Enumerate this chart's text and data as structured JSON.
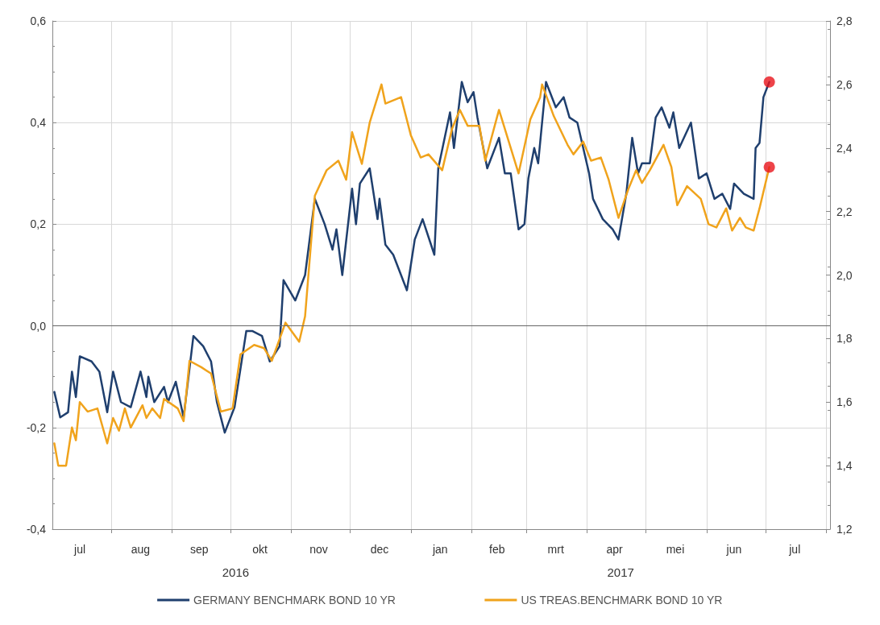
{
  "chart_data": {
    "type": "line",
    "marker": "none",
    "line_style": "solid",
    "grid": true,
    "legend": "bottom",
    "annotations": [
      "2016",
      "2017"
    ],
    "xlim": [
      "2016-07-02",
      "2017-08-03"
    ],
    "xticks": [
      {
        "value": "2016-07-16",
        "label": "jul"
      },
      {
        "value": "2016-08-01",
        "label": null
      },
      {
        "value": "2016-08-16",
        "label": "aug"
      },
      {
        "value": "2016-09-01",
        "label": null
      },
      {
        "value": "2016-09-15",
        "label": "sep"
      },
      {
        "value": "2016-10-01",
        "label": null
      },
      {
        "value": "2016-10-16",
        "label": "okt"
      },
      {
        "value": "2016-11-01",
        "label": null
      },
      {
        "value": "2016-11-15",
        "label": "nov"
      },
      {
        "value": "2016-12-01",
        "label": null
      },
      {
        "value": "2016-12-16",
        "label": "dec"
      },
      {
        "value": "2017-01-01",
        "label": null
      },
      {
        "value": "2017-01-16",
        "label": "jan"
      },
      {
        "value": "2017-02-01",
        "label": null
      },
      {
        "value": "2017-02-14",
        "label": "feb"
      },
      {
        "value": "2017-03-01",
        "label": null
      },
      {
        "value": "2017-03-16",
        "label": "mrt"
      },
      {
        "value": "2017-04-01",
        "label": null
      },
      {
        "value": "2017-04-15",
        "label": "apr"
      },
      {
        "value": "2017-05-01",
        "label": null
      },
      {
        "value": "2017-05-16",
        "label": "mei"
      },
      {
        "value": "2017-06-01",
        "label": null
      },
      {
        "value": "2017-06-15",
        "label": "jun"
      },
      {
        "value": "2017-07-01",
        "label": null
      },
      {
        "value": "2017-07-16",
        "label": "jul"
      },
      {
        "value": "2017-08-01",
        "label": null
      }
    ],
    "ylim": [
      -0.4,
      0.6
    ],
    "yticks": [
      {
        "value": -0.4,
        "label": "-0,4"
      },
      {
        "value": -0.2,
        "label": "-0,2"
      },
      {
        "value": 0,
        "label": "0,0"
      },
      {
        "value": 0.2,
        "label": "0,2"
      },
      {
        "value": 0.4,
        "label": "0,4"
      },
      {
        "value": 0.6,
        "label": "0,6"
      }
    ],
    "y2lim": [
      1.2,
      2.8
    ],
    "y2ticks": [
      {
        "value": 1.2,
        "label": "1,2"
      },
      {
        "value": 1.4,
        "label": "1,4"
      },
      {
        "value": 1.6,
        "label": "1,6"
      },
      {
        "value": 1.8,
        "label": "1,8"
      },
      {
        "value": 2.0,
        "label": "2,0"
      },
      {
        "value": 2.2,
        "label": "2,2"
      },
      {
        "value": 2.4,
        "label": "2,4"
      },
      {
        "value": 2.6,
        "label": "2,6"
      },
      {
        "value": 2.8,
        "label": "2,8"
      }
    ],
    "ref_lines": [
      {
        "axis": "y",
        "value": 0,
        "color": "#666666"
      }
    ],
    "series": [
      {
        "name": "GERMANY BENCHMARK BOND 10 YR",
        "color": "#1f3f6e",
        "x": [
          "2016-07-03",
          "2016-07-06",
          "2016-07-10",
          "2016-07-12",
          "2016-07-14",
          "2016-07-16",
          "2016-07-22",
          "2016-07-26",
          "2016-07-30",
          "2016-08-02",
          "2016-08-06",
          "2016-08-11",
          "2016-08-16",
          "2016-08-19",
          "2016-08-20",
          "2016-08-23",
          "2016-08-28",
          "2016-08-30",
          "2016-09-03",
          "2016-09-07",
          "2016-09-12",
          "2016-09-17",
          "2016-09-21",
          "2016-09-24",
          "2016-09-28",
          "2016-10-03",
          "2016-10-09",
          "2016-10-12",
          "2016-10-17",
          "2016-10-21",
          "2016-10-26",
          "2016-10-28",
          "2016-11-03",
          "2016-11-08",
          "2016-11-13",
          "2016-11-18",
          "2016-11-22",
          "2016-11-24",
          "2016-11-27",
          "2016-12-02",
          "2016-12-04",
          "2016-12-06",
          "2016-12-11",
          "2016-12-15",
          "2016-12-16",
          "2016-12-19",
          "2016-12-23",
          "2016-12-30",
          "2017-01-03",
          "2017-01-07",
          "2017-01-13",
          "2017-01-15",
          "2017-01-21",
          "2017-01-23",
          "2017-01-27",
          "2017-01-30",
          "2017-02-02",
          "2017-02-04",
          "2017-02-09",
          "2017-02-15",
          "2017-02-18",
          "2017-02-21",
          "2017-02-25",
          "2017-02-28",
          "2017-03-02",
          "2017-03-05",
          "2017-03-07",
          "2017-03-11",
          "2017-03-16",
          "2017-03-20",
          "2017-03-23",
          "2017-03-27",
          "2017-04-02",
          "2017-04-04",
          "2017-04-09",
          "2017-04-14",
          "2017-04-17",
          "2017-04-21",
          "2017-04-24",
          "2017-04-27",
          "2017-04-29",
          "2017-05-03",
          "2017-05-06",
          "2017-05-09",
          "2017-05-13",
          "2017-05-15",
          "2017-05-18",
          "2017-05-24",
          "2017-05-28",
          "2017-06-01",
          "2017-06-05",
          "2017-06-09",
          "2017-06-13",
          "2017-06-15",
          "2017-06-20",
          "2017-06-25",
          "2017-06-26",
          "2017-06-28",
          "2017-06-30",
          "2017-07-03"
        ],
        "values": [
          -0.13,
          -0.18,
          -0.17,
          -0.09,
          -0.14,
          -0.06,
          -0.07,
          -0.09,
          -0.17,
          -0.09,
          -0.15,
          -0.16,
          -0.09,
          -0.14,
          -0.1,
          -0.15,
          -0.12,
          -0.15,
          -0.11,
          -0.18,
          -0.02,
          -0.04,
          -0.07,
          -0.15,
          -0.21,
          -0.16,
          -0.01,
          -0.01,
          -0.02,
          -0.07,
          -0.04,
          0.09,
          0.05,
          0.1,
          0.25,
          0.2,
          0.15,
          0.19,
          0.1,
          0.27,
          0.2,
          0.28,
          0.31,
          0.21,
          0.25,
          0.16,
          0.14,
          0.07,
          0.17,
          0.21,
          0.14,
          0.31,
          0.42,
          0.35,
          0.48,
          0.44,
          0.46,
          0.41,
          0.31,
          0.37,
          0.3,
          0.3,
          0.19,
          0.2,
          0.29,
          0.35,
          0.32,
          0.48,
          0.43,
          0.45,
          0.41,
          0.4,
          0.3,
          0.25,
          0.21,
          0.19,
          0.17,
          0.26,
          0.37,
          0.3,
          0.32,
          0.32,
          0.41,
          0.43,
          0.39,
          0.42,
          0.35,
          0.4,
          0.29,
          0.3,
          0.25,
          0.26,
          0.23,
          0.28,
          0.26,
          0.25,
          0.35,
          0.36,
          0.45,
          0.48
        ]
      },
      {
        "name": "US TREAS.BENCHMARK BOND 10 YR",
        "color": "#f0a31c",
        "axis": "y2",
        "x": [
          "2016-07-03",
          "2016-07-05",
          "2016-07-09",
          "2016-07-12",
          "2016-07-14",
          "2016-07-16",
          "2016-07-20",
          "2016-07-25",
          "2016-07-30",
          "2016-08-02",
          "2016-08-05",
          "2016-08-08",
          "2016-08-11",
          "2016-08-17",
          "2016-08-19",
          "2016-08-22",
          "2016-08-26",
          "2016-08-28",
          "2016-09-04",
          "2016-09-07",
          "2016-09-10",
          "2016-09-16",
          "2016-09-21",
          "2016-09-26",
          "2016-10-02",
          "2016-10-06",
          "2016-10-13",
          "2016-10-18",
          "2016-10-22",
          "2016-10-29",
          "2016-11-05",
          "2016-11-08",
          "2016-11-13",
          "2016-11-19",
          "2016-11-25",
          "2016-11-29",
          "2016-12-02",
          "2016-12-07",
          "2016-12-11",
          "2016-12-17",
          "2016-12-19",
          "2016-12-27",
          "2017-01-01",
          "2017-01-06",
          "2017-01-10",
          "2017-01-17",
          "2017-01-22",
          "2017-01-26",
          "2017-01-30",
          "2017-02-05",
          "2017-02-08",
          "2017-02-15",
          "2017-02-20",
          "2017-02-25",
          "2017-03-03",
          "2017-03-08",
          "2017-03-09",
          "2017-03-15",
          "2017-03-22",
          "2017-03-25",
          "2017-03-30",
          "2017-04-03",
          "2017-04-08",
          "2017-04-12",
          "2017-04-17",
          "2017-04-22",
          "2017-04-26",
          "2017-04-29",
          "2017-05-03",
          "2017-05-10",
          "2017-05-14",
          "2017-05-17",
          "2017-05-22",
          "2017-05-29",
          "2017-06-02",
          "2017-06-06",
          "2017-06-11",
          "2017-06-14",
          "2017-06-18",
          "2017-06-21",
          "2017-06-25",
          "2017-06-28",
          "2017-07-03"
        ],
        "values": [
          1.47,
          1.4,
          1.4,
          1.52,
          1.48,
          1.6,
          1.57,
          1.58,
          1.47,
          1.55,
          1.51,
          1.58,
          1.52,
          1.59,
          1.55,
          1.58,
          1.55,
          1.61,
          1.58,
          1.54,
          1.73,
          1.71,
          1.69,
          1.57,
          1.58,
          1.75,
          1.78,
          1.77,
          1.73,
          1.85,
          1.79,
          1.87,
          2.25,
          2.33,
          2.36,
          2.3,
          2.45,
          2.35,
          2.48,
          2.6,
          2.54,
          2.56,
          2.44,
          2.37,
          2.38,
          2.33,
          2.46,
          2.52,
          2.47,
          2.47,
          2.36,
          2.52,
          2.42,
          2.32,
          2.49,
          2.56,
          2.6,
          2.5,
          2.41,
          2.38,
          2.42,
          2.36,
          2.37,
          2.3,
          2.18,
          2.27,
          2.33,
          2.29,
          2.33,
          2.41,
          2.34,
          2.22,
          2.28,
          2.24,
          2.16,
          2.15,
          2.21,
          2.14,
          2.18,
          2.15,
          2.14,
          2.21,
          2.34
        ]
      },
      {
        "type": "scatter",
        "marker": "circle",
        "color": "#e8141b",
        "x": [
          "2017-07-03"
        ],
        "values": [
          0.48
        ]
      },
      {
        "type": "scatter",
        "marker": "circle",
        "color": "#e8141b",
        "axis": "y2",
        "x": [
          "2017-07-03"
        ],
        "values": [
          2.34
        ]
      }
    ]
  }
}
